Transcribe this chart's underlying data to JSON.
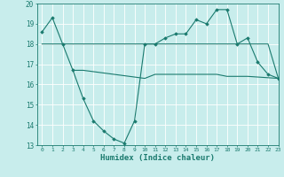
{
  "x": [
    0,
    1,
    2,
    3,
    4,
    5,
    6,
    7,
    8,
    9,
    10,
    11,
    12,
    13,
    14,
    15,
    16,
    17,
    18,
    19,
    20,
    21,
    22,
    23
  ],
  "line1": [
    18.6,
    19.3,
    18.0,
    16.7,
    15.3,
    14.2,
    13.7,
    13.3,
    13.1,
    14.2,
    18.0,
    18.0,
    18.3,
    18.5,
    18.5,
    19.2,
    19.0,
    19.7,
    19.7,
    18.0,
    18.3,
    17.1,
    16.5,
    16.3
  ],
  "line2": [
    18.0,
    18.0,
    18.0,
    18.0,
    18.0,
    18.0,
    18.0,
    18.0,
    18.0,
    18.0,
    18.0,
    18.0,
    18.0,
    18.0,
    18.0,
    18.0,
    18.0,
    18.0,
    18.0,
    18.0,
    18.0,
    18.0,
    18.0,
    16.3
  ],
  "line3_x": [
    3,
    4,
    10,
    11,
    12,
    13,
    14,
    15,
    16,
    17,
    18,
    19,
    20,
    23
  ],
  "line3_y": [
    16.7,
    16.7,
    16.3,
    16.5,
    16.5,
    16.5,
    16.5,
    16.5,
    16.5,
    16.5,
    16.4,
    16.4,
    16.4,
    16.3
  ],
  "color": "#1a7a6e",
  "bg_color": "#c8edec",
  "grid_color": "#ffffff",
  "xlabel": "Humidex (Indice chaleur)",
  "xlim": [
    -0.5,
    23
  ],
  "ylim": [
    13,
    20
  ],
  "yticks": [
    13,
    14,
    15,
    16,
    17,
    18,
    19,
    20
  ],
  "xticks": [
    0,
    1,
    2,
    3,
    4,
    5,
    6,
    7,
    8,
    9,
    10,
    11,
    12,
    13,
    14,
    15,
    16,
    17,
    18,
    19,
    20,
    21,
    22,
    23
  ]
}
